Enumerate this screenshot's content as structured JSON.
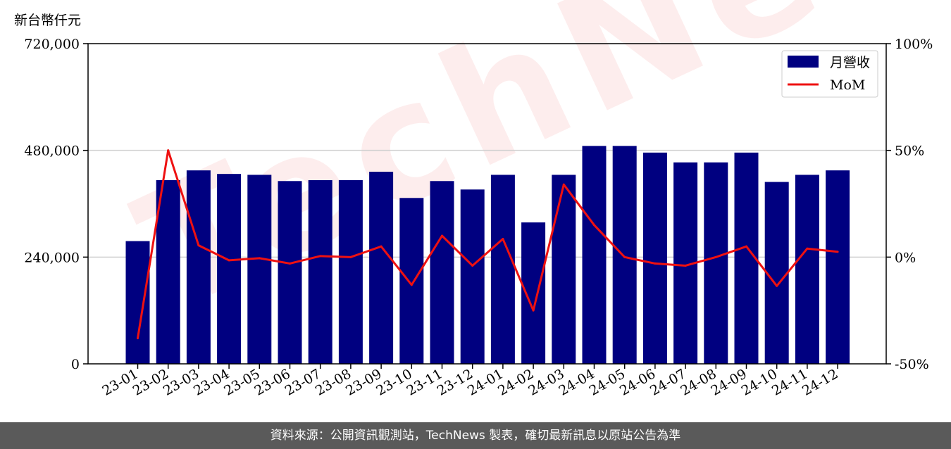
{
  "unit_label": "新台幣仟元",
  "watermark": "TechNews",
  "footer": "資料來源：公開資訊觀測站，TechNews 製表，確切最新訊息以原站公告為準",
  "colors": {
    "bar": "#000080",
    "line": "#ee1111",
    "grid": "#d0d0d0"
  },
  "chart_data": {
    "type": "bar",
    "categories": [
      "23-01",
      "23-02",
      "23-03",
      "23-04",
      "23-05",
      "23-06",
      "23-07",
      "23-08",
      "23-09",
      "23-10",
      "23-11",
      "23-12",
      "24-01",
      "24-02",
      "24-03",
      "24-04",
      "24-05",
      "24-06",
      "24-07",
      "24-08",
      "24-09",
      "24-10",
      "24-11",
      "24-12"
    ],
    "series": [
      {
        "name": "月營收",
        "type": "bar",
        "axis": "left",
        "values": [
          276000,
          413000,
          435000,
          427000,
          425000,
          411000,
          413000,
          413000,
          432000,
          373000,
          411000,
          392000,
          425000,
          318000,
          425000,
          490000,
          490000,
          475000,
          453000,
          453000,
          475000,
          409000,
          425000,
          435000
        ]
      },
      {
        "name": "MoM",
        "type": "line",
        "axis": "right",
        "values": [
          -38,
          50,
          5.5,
          -1.5,
          -0.5,
          -3,
          0.5,
          0,
          5,
          -13,
          10,
          -4,
          8.5,
          -25,
          34,
          15,
          0,
          -3,
          -4,
          0,
          5,
          -13.5,
          4,
          2.5
        ]
      }
    ],
    "y_left": {
      "ylim": [
        0,
        720000
      ],
      "ticks": [
        0,
        240000,
        480000,
        720000
      ],
      "tick_labels": [
        "0",
        "240,000",
        "480,000",
        "720,000"
      ]
    },
    "y_right": {
      "ylim": [
        -50,
        100
      ],
      "ticks": [
        -50,
        0,
        50,
        100
      ],
      "tick_labels": [
        "-50%",
        "0%",
        "50%",
        "100%"
      ]
    },
    "grid": "horizontal",
    "legend_position": "top-right"
  }
}
